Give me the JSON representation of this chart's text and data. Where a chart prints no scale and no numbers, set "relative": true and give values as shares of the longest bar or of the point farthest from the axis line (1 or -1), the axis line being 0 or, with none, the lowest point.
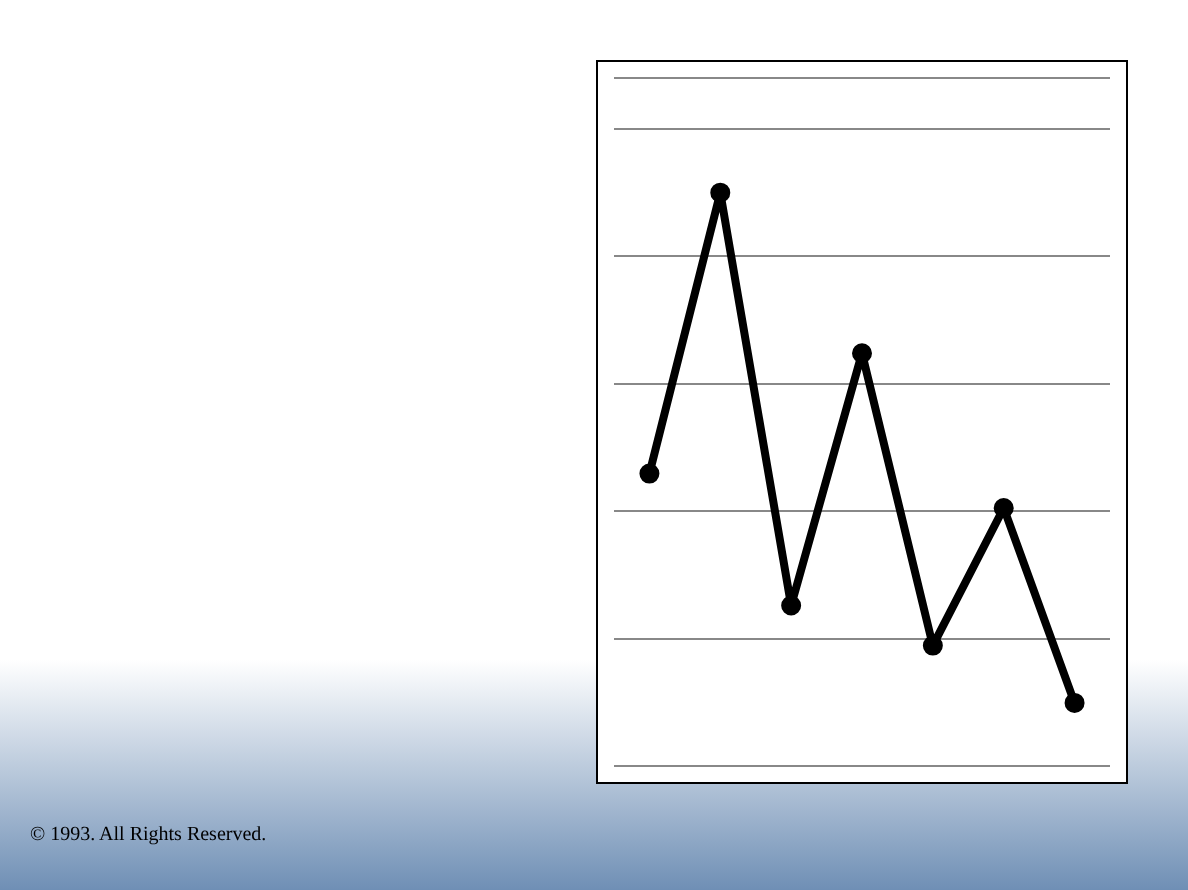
{
  "chart_data": {
    "type": "line",
    "relative": true,
    "categories": [
      null,
      null,
      null,
      null,
      null,
      null,
      null
    ],
    "series": [
      {
        "color": "#000000",
        "values": [
          0.51,
          1,
          0.28,
          0.72,
          0.21,
          0.45,
          0.11
        ]
      }
    ],
    "grid": "y",
    "marker": "circle",
    "line_style": "solid",
    "legend": false,
    "annotations": [
      "© 1993. All Rights Reserved."
    ]
  }
}
